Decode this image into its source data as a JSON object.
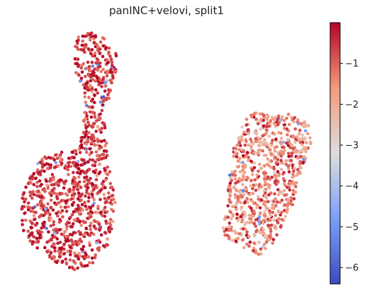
{
  "chart_data": {
    "type": "scatter",
    "title": "panINC+velovi, split1",
    "xlabel": "",
    "ylabel": "",
    "grid": false,
    "axes_visible": false,
    "colormap": "coolwarm",
    "colorbar": {
      "vmin": -6.4,
      "vmax": 0,
      "ticks": [
        -1,
        -2,
        -3,
        -4,
        -5,
        -6
      ],
      "tick_labels": [
        "−1",
        "−2",
        "−3",
        "−4",
        "−5",
        "−6"
      ],
      "placement": "right"
    },
    "clusters": [
      {
        "name": "left",
        "typical_value": -0.6,
        "points_approx": 1900,
        "note": "mostly dark red with a few blue points"
      },
      {
        "name": "right",
        "typical_value": -1.4,
        "points_approx": 1300,
        "note": "lighter red/salmon with a few blue points at the top"
      }
    ]
  }
}
